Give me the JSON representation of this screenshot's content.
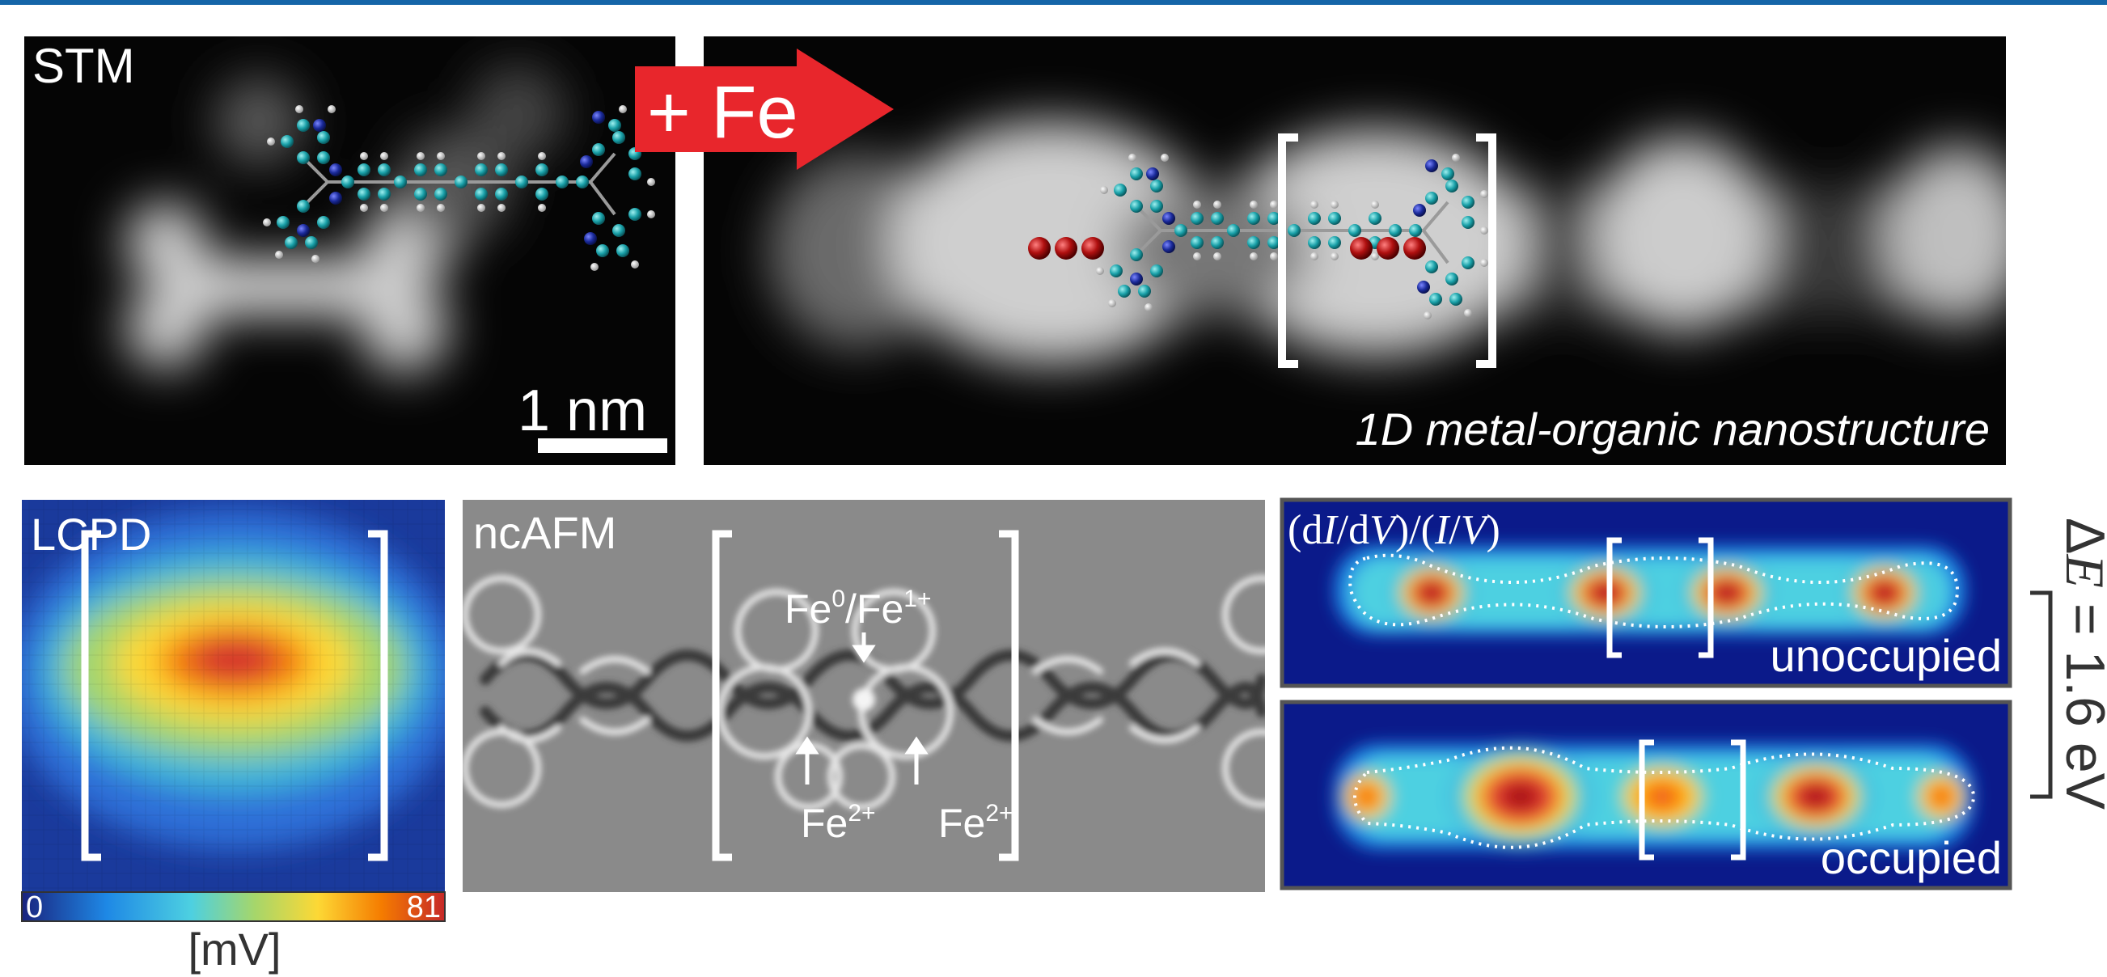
{
  "top_left_panel": {
    "label": "STM",
    "scale_bar": "1 nm"
  },
  "arrow": {
    "label": "+ Fe",
    "color": "#e8262c"
  },
  "top_right_panel": {
    "caption": "1D metal-organic nanostructure"
  },
  "lcpd_panel": {
    "label": "LCPD",
    "colorbar_min": "0",
    "colorbar_max": "81",
    "colorbar_unit": "[mV]"
  },
  "ncafm_panel": {
    "label": "ncAFM",
    "top_annotation_base1": "Fe",
    "top_annotation_sup1": "0",
    "top_annotation_mid": "/Fe",
    "top_annotation_sup2": "1+",
    "bottom_left_base": "Fe",
    "bottom_left_sup": "2+",
    "bottom_right_base": "Fe",
    "bottom_right_sup": "2+"
  },
  "didv_panel": {
    "title_part1": "(d",
    "title_I1": "I",
    "title_part2": "/d",
    "title_V1": "V",
    "title_part3": ")/(",
    "title_I2": "I",
    "title_part4": "/",
    "title_V2": "V",
    "title_part5": ")",
    "unoccupied_label": "unoccupied",
    "occupied_label": "occupied"
  },
  "energy_gap": {
    "delta": "Δ",
    "symbol": "E",
    "value": " = 1.6 eV"
  },
  "colors": {
    "frame_border": "#1565a8",
    "atom_carbon": "#19a0a8",
    "atom_nitrogen": "#1a2a9a",
    "atom_hydrogen": "#d0d0d0",
    "atom_iron": "#b01010"
  }
}
